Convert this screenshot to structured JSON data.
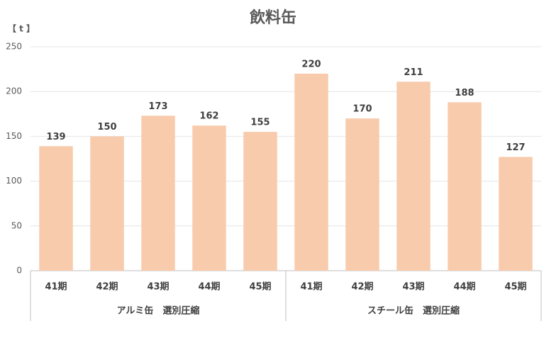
{
  "chart_data": {
    "type": "bar",
    "title": "飲料缶",
    "y_axis_label": "【 t 】",
    "groups": [
      {
        "name": "アルミ缶　選別圧縮",
        "categories": [
          "41期",
          "42期",
          "43期",
          "44期",
          "45期"
        ],
        "values": [
          139,
          150,
          173,
          162,
          155
        ]
      },
      {
        "name": "スチール缶　選別圧縮",
        "categories": [
          "41期",
          "42期",
          "43期",
          "44期",
          "45期"
        ],
        "values": [
          220,
          170,
          211,
          188,
          127
        ]
      }
    ],
    "color": "#f8cbad",
    "ylim": [
      0,
      250
    ],
    "yticks": [
      0,
      50,
      100,
      150,
      200,
      250
    ],
    "grid": true
  }
}
